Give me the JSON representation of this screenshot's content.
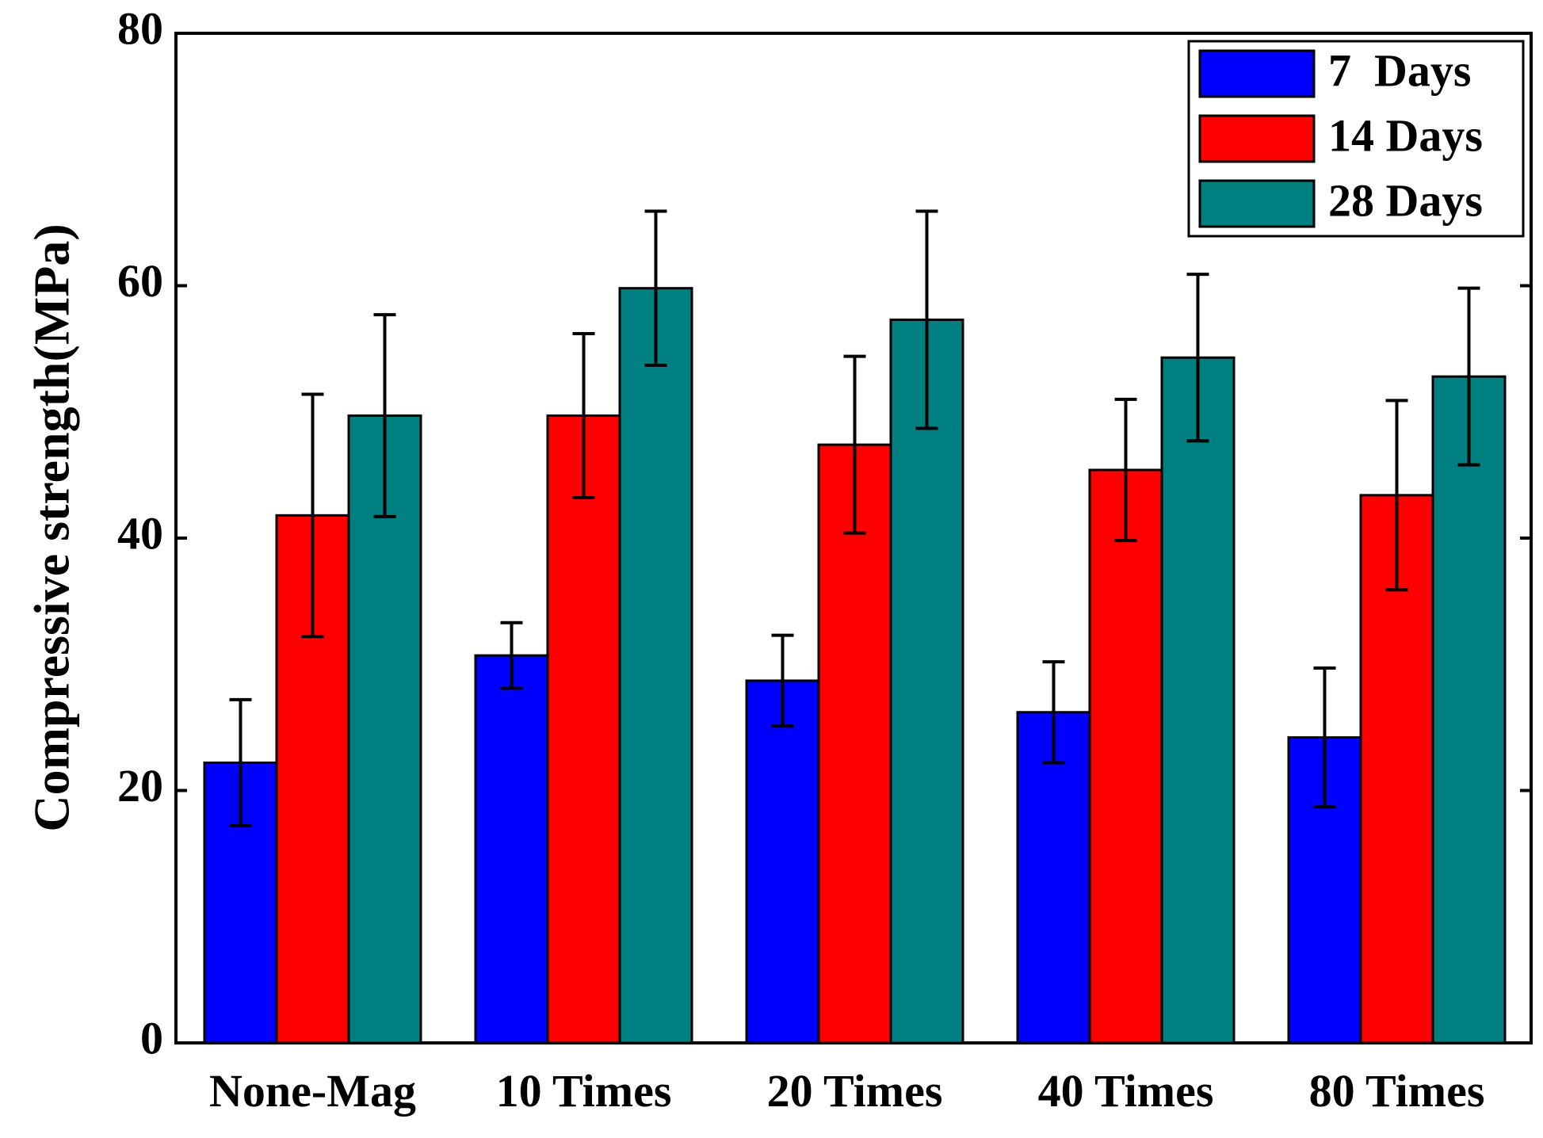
{
  "chart_data": {
    "type": "bar",
    "title": "",
    "xlabel": "",
    "ylabel": "Compressive strength(MPa)",
    "ylim": [
      0,
      80
    ],
    "yticks": [
      0,
      20,
      40,
      60,
      80
    ],
    "categories": [
      "None-Mag",
      "10 Times",
      "20 Times",
      "40 Times",
      "80 Times"
    ],
    "series": [
      {
        "name": "7  Days",
        "color": "#0000ff",
        "values": [
          22.2,
          30.7,
          28.7,
          26.2,
          24.2
        ],
        "errors": [
          5.0,
          2.6,
          3.6,
          4.0,
          5.5
        ]
      },
      {
        "name": "14 Days",
        "color": "#ff0000",
        "values": [
          41.8,
          49.7,
          47.4,
          45.4,
          43.4
        ],
        "errors": [
          9.6,
          6.5,
          7.0,
          5.6,
          7.5
        ]
      },
      {
        "name": "28 Days",
        "color": "#008080",
        "values": [
          49.7,
          59.8,
          57.3,
          54.3,
          52.8
        ],
        "errors": [
          8.0,
          6.1,
          8.6,
          6.6,
          7.0
        ]
      }
    ],
    "legend_position": "top-right",
    "grid": false
  }
}
